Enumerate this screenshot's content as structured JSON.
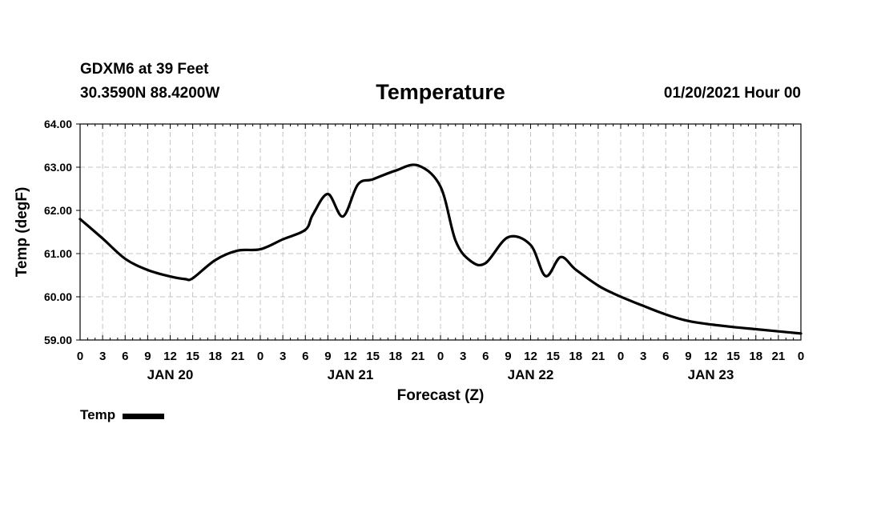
{
  "header": {
    "station": "GDXM6 at 39 Feet",
    "location": "30.3590N 88.4200W",
    "title": "Temperature",
    "run": "01/20/2021 Hour 00"
  },
  "chart_data": {
    "type": "line",
    "title": "Temperature",
    "xlabel": "Forecast (Z)",
    "ylabel": "Temp (degF)",
    "ylim": [
      59.0,
      64.0
    ],
    "xlim": [
      0,
      96
    ],
    "grid": true,
    "y_ticks": [
      "59.00",
      "60.00",
      "61.00",
      "62.00",
      "63.00",
      "64.00"
    ],
    "x_tick_labels": [
      "0",
      "3",
      "6",
      "9",
      "12",
      "15",
      "18",
      "21",
      "0",
      "3",
      "6",
      "9",
      "12",
      "15",
      "18",
      "21",
      "0",
      "3",
      "6",
      "9",
      "12",
      "15",
      "18",
      "21",
      "0",
      "3",
      "6",
      "9",
      "12",
      "15",
      "18",
      "21",
      "0"
    ],
    "day_labels": [
      {
        "label": "JAN 20",
        "hour": 12
      },
      {
        "label": "JAN 21",
        "hour": 36
      },
      {
        "label": "JAN 22",
        "hour": 60
      },
      {
        "label": "JAN 23",
        "hour": 84
      }
    ],
    "legend": [
      {
        "name": "Temp",
        "color": "#000000"
      }
    ],
    "series": [
      {
        "name": "Temp",
        "color": "#000000",
        "x": [
          0,
          3,
          6,
          9,
          12,
          14,
          15,
          18,
          21,
          24,
          27,
          30,
          31,
          33,
          35,
          37,
          39,
          42,
          45,
          48,
          50,
          52,
          54,
          57,
          60,
          62,
          64,
          66,
          69,
          71,
          73,
          75,
          78,
          81,
          84,
          87,
          90,
          93,
          96
        ],
        "values": [
          61.8,
          61.35,
          60.88,
          60.62,
          60.47,
          60.41,
          60.43,
          60.85,
          61.07,
          61.1,
          61.33,
          61.55,
          61.9,
          62.38,
          61.86,
          62.6,
          62.72,
          62.92,
          63.04,
          62.55,
          61.3,
          60.83,
          60.78,
          61.38,
          61.2,
          60.48,
          60.92,
          60.63,
          60.26,
          60.08,
          59.93,
          59.79,
          59.59,
          59.44,
          59.36,
          59.3,
          59.25,
          59.2,
          59.15
        ]
      }
    ]
  }
}
